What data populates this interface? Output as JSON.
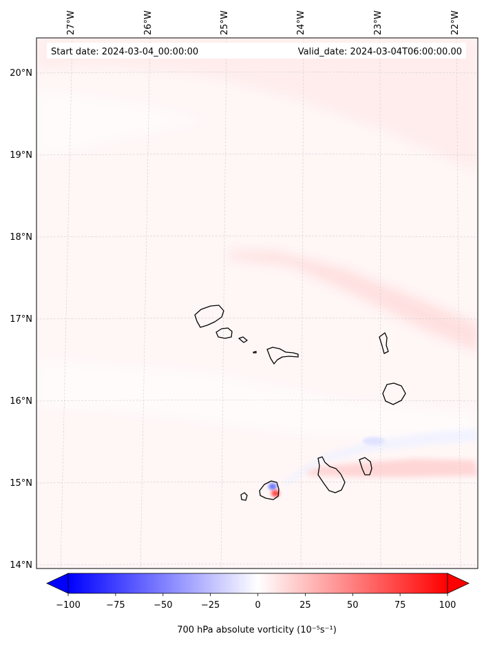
{
  "header": {
    "start_date": "Start date: 2024-03-04_00:00:00",
    "valid_date": "Valid_date: 2024-03-04T06:00:00.00"
  },
  "map": {
    "lon_labels": [
      "27°W",
      "26°W",
      "25°W",
      "24°W",
      "23°W",
      "22°W"
    ],
    "lat_labels": [
      "20°N",
      "19°N",
      "18°N",
      "17°N",
      "16°N",
      "15°N",
      "14°N"
    ],
    "gridlines": true
  },
  "colorbar": {
    "ticks": [
      "−100",
      "−75",
      "−50",
      "−25",
      "0",
      "25",
      "50",
      "75",
      "100"
    ],
    "label": "700 hPa absolute vorticity (10⁻⁵s⁻¹)",
    "min_color": "#0000ff",
    "mid_color": "#ffffff",
    "max_color": "#ff0000"
  }
}
